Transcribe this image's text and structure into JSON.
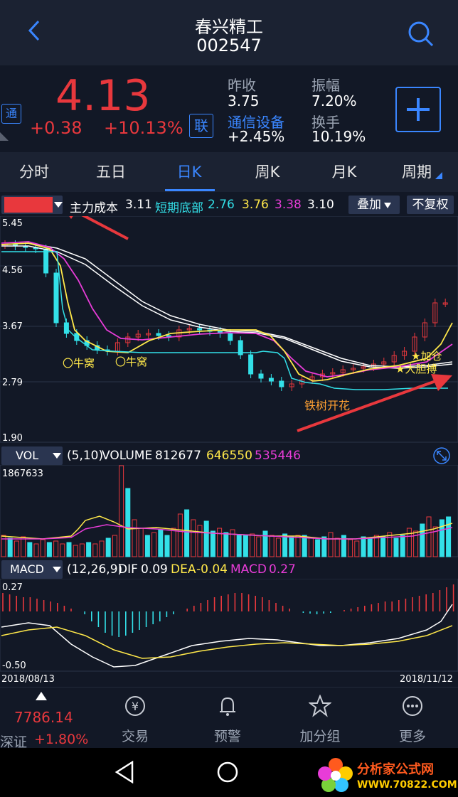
{
  "header": {
    "name": "春兴精工",
    "code": "002547"
  },
  "quote": {
    "badge": "通",
    "price": "4.13",
    "change": "+0.38",
    "change_pct": "+10.13%",
    "lian": "联",
    "prev_close_label": "昨收",
    "prev_close": "3.75",
    "amplitude_label": "振幅",
    "amplitude": "7.20%",
    "sector_label": "通信设备",
    "sector_change": "+2.45%",
    "turnover_label": "换手",
    "turnover": "10.19%"
  },
  "tabs": [
    "分时",
    "五日",
    "日K",
    "周K",
    "月K",
    "周期"
  ],
  "active_tab": "日K",
  "indicator_bar": {
    "main_cost_label": "主力成本",
    "main_cost": "3.11",
    "short_bottom_label": "短期底部",
    "short_bottom": "2.76",
    "v2": "3.76",
    "v3": "3.38",
    "v4": "3.10",
    "overlay": "叠加",
    "adjust": "不复权"
  },
  "kline": {
    "y_ticks": [
      "5.45",
      "4.56",
      "3.67",
      "2.79",
      "1.90"
    ],
    "annotations": {
      "niuwo1": "〇牛窝",
      "niuwo2": "〇牛窝",
      "tieshu": "铁树开花",
      "jiacang": "★加仓",
      "dadan": "★大胆搏"
    }
  },
  "vol": {
    "selector": "VOL",
    "params": "(5,10)",
    "label": "VOLUME",
    "value": "812677",
    "ma5": "646550",
    "ma10": "535446",
    "max": "1867633"
  },
  "macd": {
    "selector": "MACD",
    "params": "(12,26,9)",
    "dif_label": "DIF",
    "dif": "0.09",
    "dea_label": "DEA",
    "dea": "-0.04",
    "macd_label": "MACD",
    "macd": "0.27",
    "top": "0.27",
    "bottom": "-0.50"
  },
  "dates": {
    "start": "2018/08/13",
    "end": "2018/11/12"
  },
  "bottom_nav": {
    "index_value": "7786.14",
    "index_name": "深证",
    "index_change": "+1.80%",
    "items": [
      "交易",
      "预警",
      "加分组",
      "更多"
    ]
  },
  "watermark": {
    "line1": "分析家公式网",
    "line2": "WWW.70822.COM"
  },
  "colors": {
    "up": "#e8383d",
    "down": "#33e0e8",
    "accent": "#3a86ff",
    "yellow": "#ffe84a",
    "magenta": "#e83cd8"
  }
}
